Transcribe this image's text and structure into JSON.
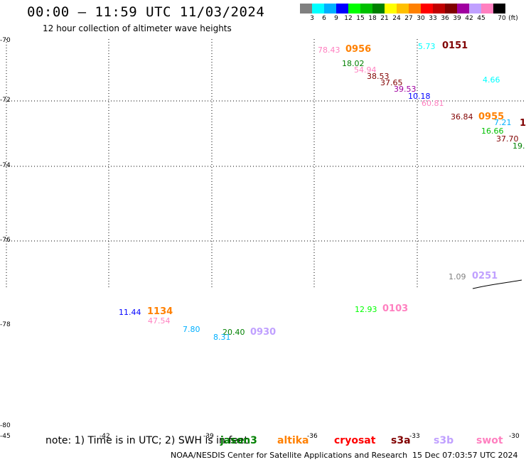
{
  "header": {
    "title": "00:00 — 11:59 UTC 11/03/2024",
    "subtitle": "12 hour collection of altimeter wave heights"
  },
  "colorbar": {
    "unit": "(ft)",
    "labels": [
      "3",
      "6",
      "9",
      "12",
      "15",
      "18",
      "21",
      "24",
      "27",
      "30",
      "33",
      "36",
      "39",
      "42",
      "45",
      "70"
    ],
    "colors": [
      "#808080",
      "#00ffff",
      "#00b0ff",
      "#0000ff",
      "#00ff00",
      "#00c000",
      "#008000",
      "#ffff00",
      "#ffc000",
      "#ff8000",
      "#ff0000",
      "#c00000",
      "#800000",
      "#a000a0",
      "#c0a0ff",
      "#ff80c0",
      "#000000"
    ]
  },
  "axes": {
    "lat_labels": [
      "-70",
      "-72",
      "-74",
      "-76",
      "-78",
      "-80"
    ],
    "lon_labels": [
      "-45",
      "-42",
      "-39",
      "-36",
      "-33",
      "-30"
    ]
  },
  "readings": [
    {
      "text": "78.43",
      "color": "#ff80c0"
    },
    {
      "text": "0956",
      "color": "#ff8000",
      "sat": true
    },
    {
      "text": "18.02",
      "color": "#008000"
    },
    {
      "text": "54.94",
      "color": "#ff80c0"
    },
    {
      "text": "38.53",
      "color": "#800000"
    },
    {
      "text": "37.65",
      "color": "#800000"
    },
    {
      "text": "39.53",
      "color": "#a000a0"
    },
    {
      "text": "10.18",
      "color": "#0000ff"
    },
    {
      "text": "60.81",
      "color": "#ff80c0"
    },
    {
      "text": "5.73",
      "color": "#00ffff"
    },
    {
      "text": "0151",
      "color": "#800000",
      "sat": true
    },
    {
      "text": "4.66",
      "color": "#00ffff"
    },
    {
      "text": "36.84",
      "color": "#800000"
    },
    {
      "text": "0955",
      "color": "#ff8000",
      "sat": true
    },
    {
      "text": "7.21",
      "color": "#00b0ff"
    },
    {
      "text": "16.66",
      "color": "#00c000"
    },
    {
      "text": "37.70",
      "color": "#800000"
    },
    {
      "text": "19.",
      "color": "#008000"
    },
    {
      "text": "1(",
      "color": "#800000",
      "sat": true
    },
    {
      "text": "1.09",
      "color": "#808080"
    },
    {
      "text": "0251",
      "color": "#c0a0ff",
      "sat": true
    },
    {
      "text": "11.44",
      "color": "#0000ff"
    },
    {
      "text": "1134",
      "color": "#ff8000",
      "sat": true
    },
    {
      "text": "47.54",
      "color": "#ff80c0"
    },
    {
      "text": "7.80",
      "color": "#00b0ff"
    },
    {
      "text": "20.40",
      "color": "#008000"
    },
    {
      "text": "8.31",
      "color": "#00b0ff"
    },
    {
      "text": "0930",
      "color": "#c0a0ff",
      "sat": true
    },
    {
      "text": "12.93",
      "color": "#00ff00"
    },
    {
      "text": "0103",
      "color": "#ff80c0",
      "sat": true
    }
  ],
  "satellites": [
    {
      "name": "jason3",
      "color": "#008000"
    },
    {
      "name": "altika",
      "color": "#ff8000"
    },
    {
      "name": "cryosat",
      "color": "#ff0000"
    },
    {
      "name": "s3a",
      "color": "#800000"
    },
    {
      "name": "s3b",
      "color": "#c0a0ff"
    },
    {
      "name": "swot",
      "color": "#ff80c0"
    }
  ],
  "footer": {
    "note": "note: 1) Time is in UTC; 2) SWH is in feet",
    "credit": "NOAA/NESDIS Center for Satellite Applications and Research",
    "timestamp": "15 Dec 07:03:57 UTC 2024"
  }
}
